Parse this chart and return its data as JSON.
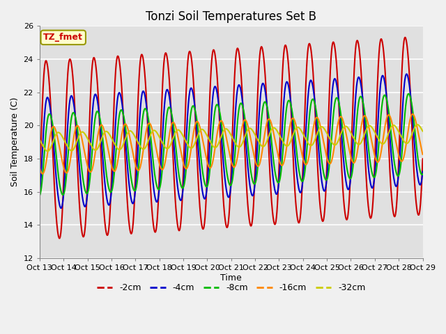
{
  "title": "Tonzi Soil Temperatures Set B",
  "xlabel": "Time",
  "ylabel": "Soil Temperature (C)",
  "ylim": [
    12,
    26
  ],
  "xlim_start": 0,
  "xlim_end": 16,
  "xtick_labels": [
    "Oct 13",
    "Oct 14",
    "Oct 15",
    "Oct 16",
    "Oct 17",
    "Oct 18",
    "Oct 19",
    "Oct 20",
    "Oct 21",
    "Oct 22",
    "Oct 23",
    "Oct 24",
    "Oct 25",
    "Oct 26",
    "Oct 27",
    "Oct 28",
    "Oct 29"
  ],
  "ytick_values": [
    12,
    14,
    16,
    18,
    20,
    22,
    24,
    26
  ],
  "legend_labels": [
    "-2cm",
    "-4cm",
    "-8cm",
    "-16cm",
    "-32cm"
  ],
  "series_colors": [
    "#cc0000",
    "#0000cc",
    "#00bb00",
    "#ff8800",
    "#cccc00"
  ],
  "plot_bg_color": "#e0e0e0",
  "fig_bg_color": "#f0f0f0",
  "annotation_text": "TZ_fmet",
  "annotation_bg": "#ffffcc",
  "annotation_border": "#999900",
  "title_fontsize": 12,
  "axis_label_fontsize": 9,
  "tick_fontsize": 8,
  "linewidth": 1.5
}
